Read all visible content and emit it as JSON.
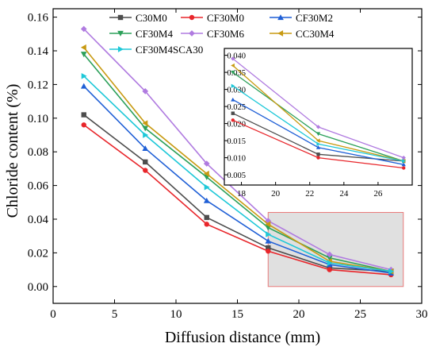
{
  "chart_data": {
    "type": "line",
    "xlabel": "Diffusion distance (mm)",
    "ylabel": "Chloride content (%)",
    "xlim": [
      0,
      30
    ],
    "ylim": [
      -0.01,
      0.165
    ],
    "x_ticks": [
      0,
      5,
      10,
      15,
      20,
      25,
      30
    ],
    "y_ticks": [
      0.0,
      0.02,
      0.04,
      0.06,
      0.08,
      0.1,
      0.12,
      0.14,
      0.16
    ],
    "x": [
      2.5,
      7.5,
      12.5,
      17.5,
      22.5,
      27.5
    ],
    "grid": false,
    "legend_position": "top",
    "series": [
      {
        "name": "C30M0",
        "color": "#4d4d4d",
        "marker": "square",
        "values": [
          0.102,
          0.074,
          0.041,
          0.023,
          0.011,
          0.009
        ]
      },
      {
        "name": "CF30M0",
        "color": "#e8262b",
        "marker": "circle",
        "values": [
          0.096,
          0.069,
          0.037,
          0.021,
          0.01,
          0.007
        ]
      },
      {
        "name": "CF30M2",
        "color": "#1f5fd6",
        "marker": "triangle-up",
        "values": [
          0.119,
          0.082,
          0.051,
          0.027,
          0.013,
          0.008
        ]
      },
      {
        "name": "CF30M4",
        "color": "#2ca05a",
        "marker": "triangle-down",
        "values": [
          0.138,
          0.094,
          0.065,
          0.035,
          0.017,
          0.009
        ]
      },
      {
        "name": "CF30M6",
        "color": "#b07be0",
        "marker": "diamond",
        "values": [
          0.153,
          0.116,
          0.073,
          0.039,
          0.019,
          0.01
        ]
      },
      {
        "name": "CC30M4",
        "color": "#c89a12",
        "marker": "triangle-left",
        "values": [
          0.142,
          0.097,
          0.067,
          0.037,
          0.015,
          0.009
        ]
      },
      {
        "name": "CF30M4SCA30",
        "color": "#1ec8d8",
        "marker": "triangle-right",
        "values": [
          0.125,
          0.09,
          0.059,
          0.031,
          0.014,
          0.009
        ]
      }
    ],
    "highlight_region": {
      "x": [
        17.5,
        28.5
      ],
      "y": [
        0.0,
        0.044
      ],
      "fill": "#e0e0e0",
      "stroke": "#e87a7a"
    },
    "inset": {
      "xlim": [
        17,
        28
      ],
      "ylim": [
        0.002,
        0.042
      ],
      "x_ticks": [
        18,
        20,
        22,
        24,
        26
      ],
      "y_ticks": [
        0.005,
        0.01,
        0.015,
        0.02,
        0.025,
        0.03,
        0.035,
        0.04
      ],
      "x": [
        17.5,
        22.5,
        27.5
      ]
    }
  }
}
